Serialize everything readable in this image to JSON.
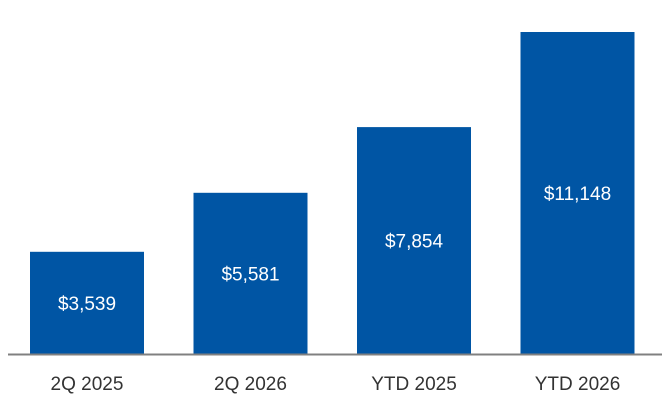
{
  "chart_data": {
    "type": "bar",
    "categories": [
      "2Q 2025",
      "2Q 2026",
      "YTD 2025",
      "YTD 2026"
    ],
    "values": [
      3539,
      5581,
      7854,
      11148
    ],
    "data_labels": [
      "$3,539",
      "$5,581",
      "$7,854",
      "$11,148"
    ],
    "title": "",
    "xlabel": "",
    "ylabel": "",
    "ylim": [
      0,
      11148
    ],
    "grid": false,
    "legend": "none",
    "bar_color": "#0055a4",
    "axis_color": "#808080"
  }
}
